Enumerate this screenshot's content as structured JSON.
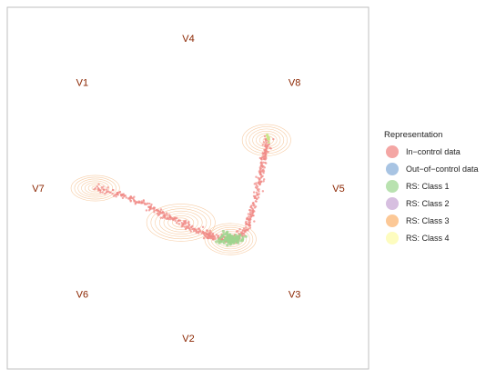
{
  "chart_data": {
    "type": "scatter",
    "title": "",
    "xlabel": "",
    "ylabel": "",
    "grid": false,
    "legend_position": "right",
    "legend": {
      "title": "Representation",
      "entries": [
        {
          "label": "In−control data",
          "color": "#f4a6a4"
        },
        {
          "label": "Out−of−control data",
          "color": "#a8c4e3"
        },
        {
          "label": "RS: Class 1",
          "color": "#b9e2b0"
        },
        {
          "label": "RS: Class 2",
          "color": "#d7bfe0"
        },
        {
          "label": "RS: Class 3",
          "color": "#fcc896"
        },
        {
          "label": "RS: Class 4",
          "color": "#fdfcbf"
        }
      ]
    },
    "anchors": [
      {
        "label": "V4",
        "x": 0.0,
        "y": 1.0
      },
      {
        "label": "V8",
        "x": 0.707,
        "y": 0.707
      },
      {
        "label": "V5",
        "x": 1.0,
        "y": 0.0
      },
      {
        "label": "V3",
        "x": 0.707,
        "y": -0.707
      },
      {
        "label": "V2",
        "x": 0.0,
        "y": -1.0
      },
      {
        "label": "V6",
        "x": -0.707,
        "y": -0.707
      },
      {
        "label": "V7",
        "x": -1.0,
        "y": 0.0
      },
      {
        "label": "V1",
        "x": -0.707,
        "y": 0.707
      }
    ],
    "xlim": [
      -1.15,
      1.15
    ],
    "ylim": [
      -1.15,
      1.15
    ],
    "density_centers": [
      {
        "x": -0.62,
        "y": 0.0,
        "sx": 0.085,
        "sy": 0.045,
        "levels": 7
      },
      {
        "x": -0.05,
        "y": -0.23,
        "sx": 0.12,
        "sy": 0.065,
        "levels": 8
      },
      {
        "x": 0.28,
        "y": -0.34,
        "sx": 0.09,
        "sy": 0.055,
        "levels": 8
      },
      {
        "x": 0.52,
        "y": 0.32,
        "sx": 0.085,
        "sy": 0.055,
        "levels": 7
      }
    ],
    "in_control_path": [
      [
        -0.62,
        0.0
      ],
      [
        -0.45,
        -0.05
      ],
      [
        -0.3,
        -0.1
      ],
      [
        -0.18,
        -0.17
      ],
      [
        -0.05,
        -0.23
      ],
      [
        0.05,
        -0.28
      ],
      [
        0.15,
        -0.32
      ],
      [
        0.24,
        -0.34
      ],
      [
        0.32,
        -0.34
      ],
      [
        0.38,
        -0.28
      ],
      [
        0.42,
        -0.17
      ],
      [
        0.46,
        -0.02
      ],
      [
        0.49,
        0.12
      ],
      [
        0.51,
        0.23
      ],
      [
        0.53,
        0.33
      ]
    ],
    "class1_cluster": {
      "x": 0.28,
      "y": -0.34,
      "spread": 0.035
    },
    "class4_cluster": {
      "x": 0.53,
      "y": 0.33,
      "spread": 0.015
    }
  }
}
